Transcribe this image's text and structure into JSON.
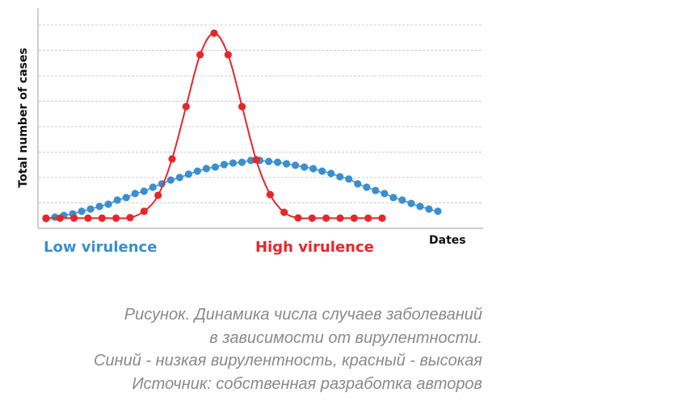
{
  "chart_data": {
    "type": "line",
    "title": "",
    "xlabel": "Dates",
    "ylabel": "Total number of cases",
    "ylim": [
      0,
      8.6
    ],
    "grid": true,
    "gridlines": 8,
    "tick_labels": false,
    "series": [
      {
        "name": "Low virulence",
        "color": "#3a8fd0",
        "values": [
          0.38,
          0.44,
          0.51,
          0.57,
          0.67,
          0.76,
          0.86,
          0.95,
          1.11,
          1.21,
          1.37,
          1.46,
          1.62,
          1.75,
          1.9,
          2.0,
          2.13,
          2.25,
          2.35,
          2.41,
          2.51,
          2.57,
          2.6,
          2.67,
          2.67,
          2.63,
          2.6,
          2.54,
          2.48,
          2.41,
          2.35,
          2.25,
          2.16,
          2.03,
          1.94,
          1.75,
          1.62,
          1.49,
          1.37,
          1.21,
          1.11,
          0.98,
          0.86,
          0.76,
          0.67
        ]
      },
      {
        "name": "High virulence",
        "color": "#e8262a",
        "values": [
          0.4,
          0.4,
          0.4,
          0.4,
          0.4,
          0.4,
          0.42,
          0.67,
          1.3,
          2.73,
          4.79,
          6.83,
          7.68,
          6.83,
          4.79,
          2.7,
          1.33,
          0.63,
          0.41,
          0.4,
          0.4,
          0.4,
          0.4,
          0.4,
          0.4
        ]
      }
    ]
  },
  "caption": {
    "lines": [
      "Рисунок. Динамика числа случаев заболеваний",
      "в зависимости от вирулентности.",
      "Синий - низкая вирулентность, красный - высокая",
      "Источник: собственная разработка авторов"
    ]
  }
}
